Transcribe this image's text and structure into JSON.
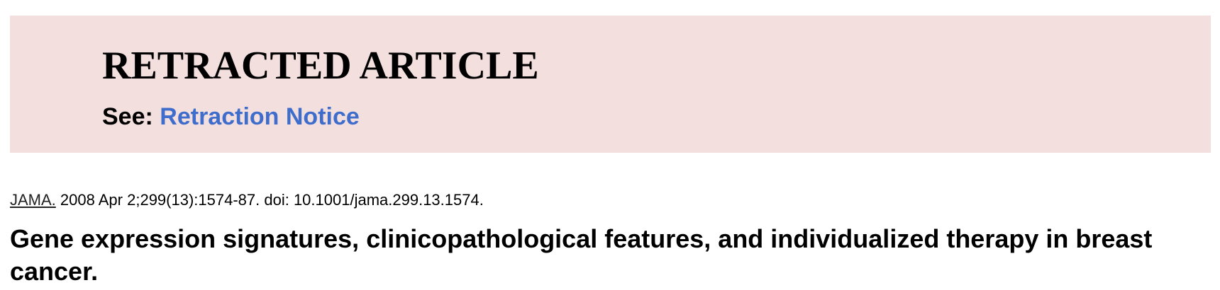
{
  "banner": {
    "heading": "RETRACTED ARTICLE",
    "see_label": "See:",
    "notice_link": "Retraction Notice",
    "background_color": "#f4dfdf",
    "link_color": "#3e6dcc"
  },
  "citation": {
    "journal": "JAMA.",
    "details": "2008 Apr 2;299(13):1574-87. doi: 10.1001/jama.299.13.1574."
  },
  "article": {
    "title": "Gene expression signatures, clinicopathological features, and individualized therapy in breast cancer."
  }
}
